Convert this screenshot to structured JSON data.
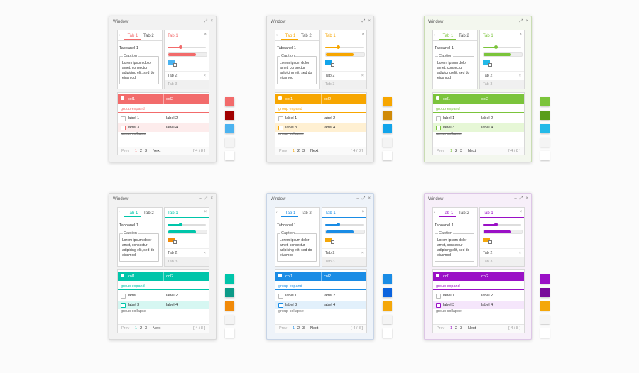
{
  "themes": [
    {
      "name": "coral",
      "accent": "#f26b6b",
      "sel": "#fdecec",
      "wborder": "#d9d9d9",
      "wbg": "#f2f2f2",
      "c1": "#f26b6b",
      "c2": "#a10000",
      "c3": "#4bb3f0",
      "c4": "#f4f4f4",
      "c5": "#ffffff",
      "slider_pct": 34,
      "progress_pct": 72
    },
    {
      "name": "orange",
      "accent": "#f7a600",
      "sel": "#fff0d2",
      "wborder": "#d9d9d9",
      "wbg": "#f2f2f2",
      "c1": "#f7a600",
      "c2": "#d08a08",
      "c3": "#12a4ea",
      "c4": "#f4f4f4",
      "c5": "#ffffff",
      "slider_pct": 34,
      "progress_pct": 72
    },
    {
      "name": "green",
      "accent": "#7bc43b",
      "sel": "#e6f7d6",
      "wborder": "#c9dcb3",
      "wbg": "#f3f7ee",
      "c1": "#7bc43b",
      "c2": "#5a9d1a",
      "c3": "#23b9e8",
      "c4": "#f4f4f4",
      "c5": "#ffffff",
      "slider_pct": 34,
      "progress_pct": 72
    },
    {
      "name": "teal",
      "accent": "#00c5aa",
      "sel": "#d6f7f2",
      "wborder": "#d9d9d9",
      "wbg": "#f2f2f2",
      "c1": "#00c5aa",
      "c2": "#0d9b89",
      "c3": "#f18a09",
      "c4": "#f4f4f4",
      "c5": "#ffffff",
      "slider_pct": 34,
      "progress_pct": 72
    },
    {
      "name": "blue",
      "accent": "#1a8ce5",
      "sel": "#e2f0fb",
      "wborder": "#c7d4e6",
      "wbg": "#eef3f9",
      "c1": "#1a8ce5",
      "c2": "#0b63de",
      "c3": "#f4a70a",
      "c4": "#f4f4f4",
      "c5": "#ffffff",
      "slider_pct": 34,
      "progress_pct": 72
    },
    {
      "name": "purple",
      "accent": "#9a10c6",
      "sel": "#f5e6fb",
      "wborder": "#ddc6e6",
      "wbg": "#f7eff9",
      "c1": "#9a10c6",
      "c2": "#780a9b",
      "c3": "#f4a70a",
      "c4": "#f4f4f4",
      "c5": "#ffffff",
      "slider_pct": 34,
      "progress_pct": 72
    }
  ],
  "window": {
    "title": "Window",
    "min": "–",
    "max": "⤢",
    "close": "×"
  },
  "tabs_a": {
    "left_arrow": "‹",
    "tab1": "Tab 1",
    "tab2": "Tab 2",
    "panel_label": "Taboanel 1",
    "caption": "Caption",
    "lorem": "Lorem ipsum dolor amet, consectur adipicing elit, sed do eiusmod"
  },
  "tabs_b": {
    "tab1": "Tab 1",
    "close": "×",
    "tab2": "Tab 2",
    "tab2_close": "×",
    "tab3": "Tab 3"
  },
  "grid": {
    "col1": "col1",
    "col2": "col2",
    "group_expand": "group expand",
    "group_collapse": "group collapse",
    "rows": [
      {
        "c1": "label 1",
        "c2": "label 2"
      },
      {
        "c1": "label 3",
        "c2": "label 4"
      }
    ]
  },
  "pager": {
    "prev": "Prev",
    "p1": "1",
    "p2": "2",
    "p3": "3",
    "next": "Next",
    "info": "[ 4 / 8 ]"
  }
}
